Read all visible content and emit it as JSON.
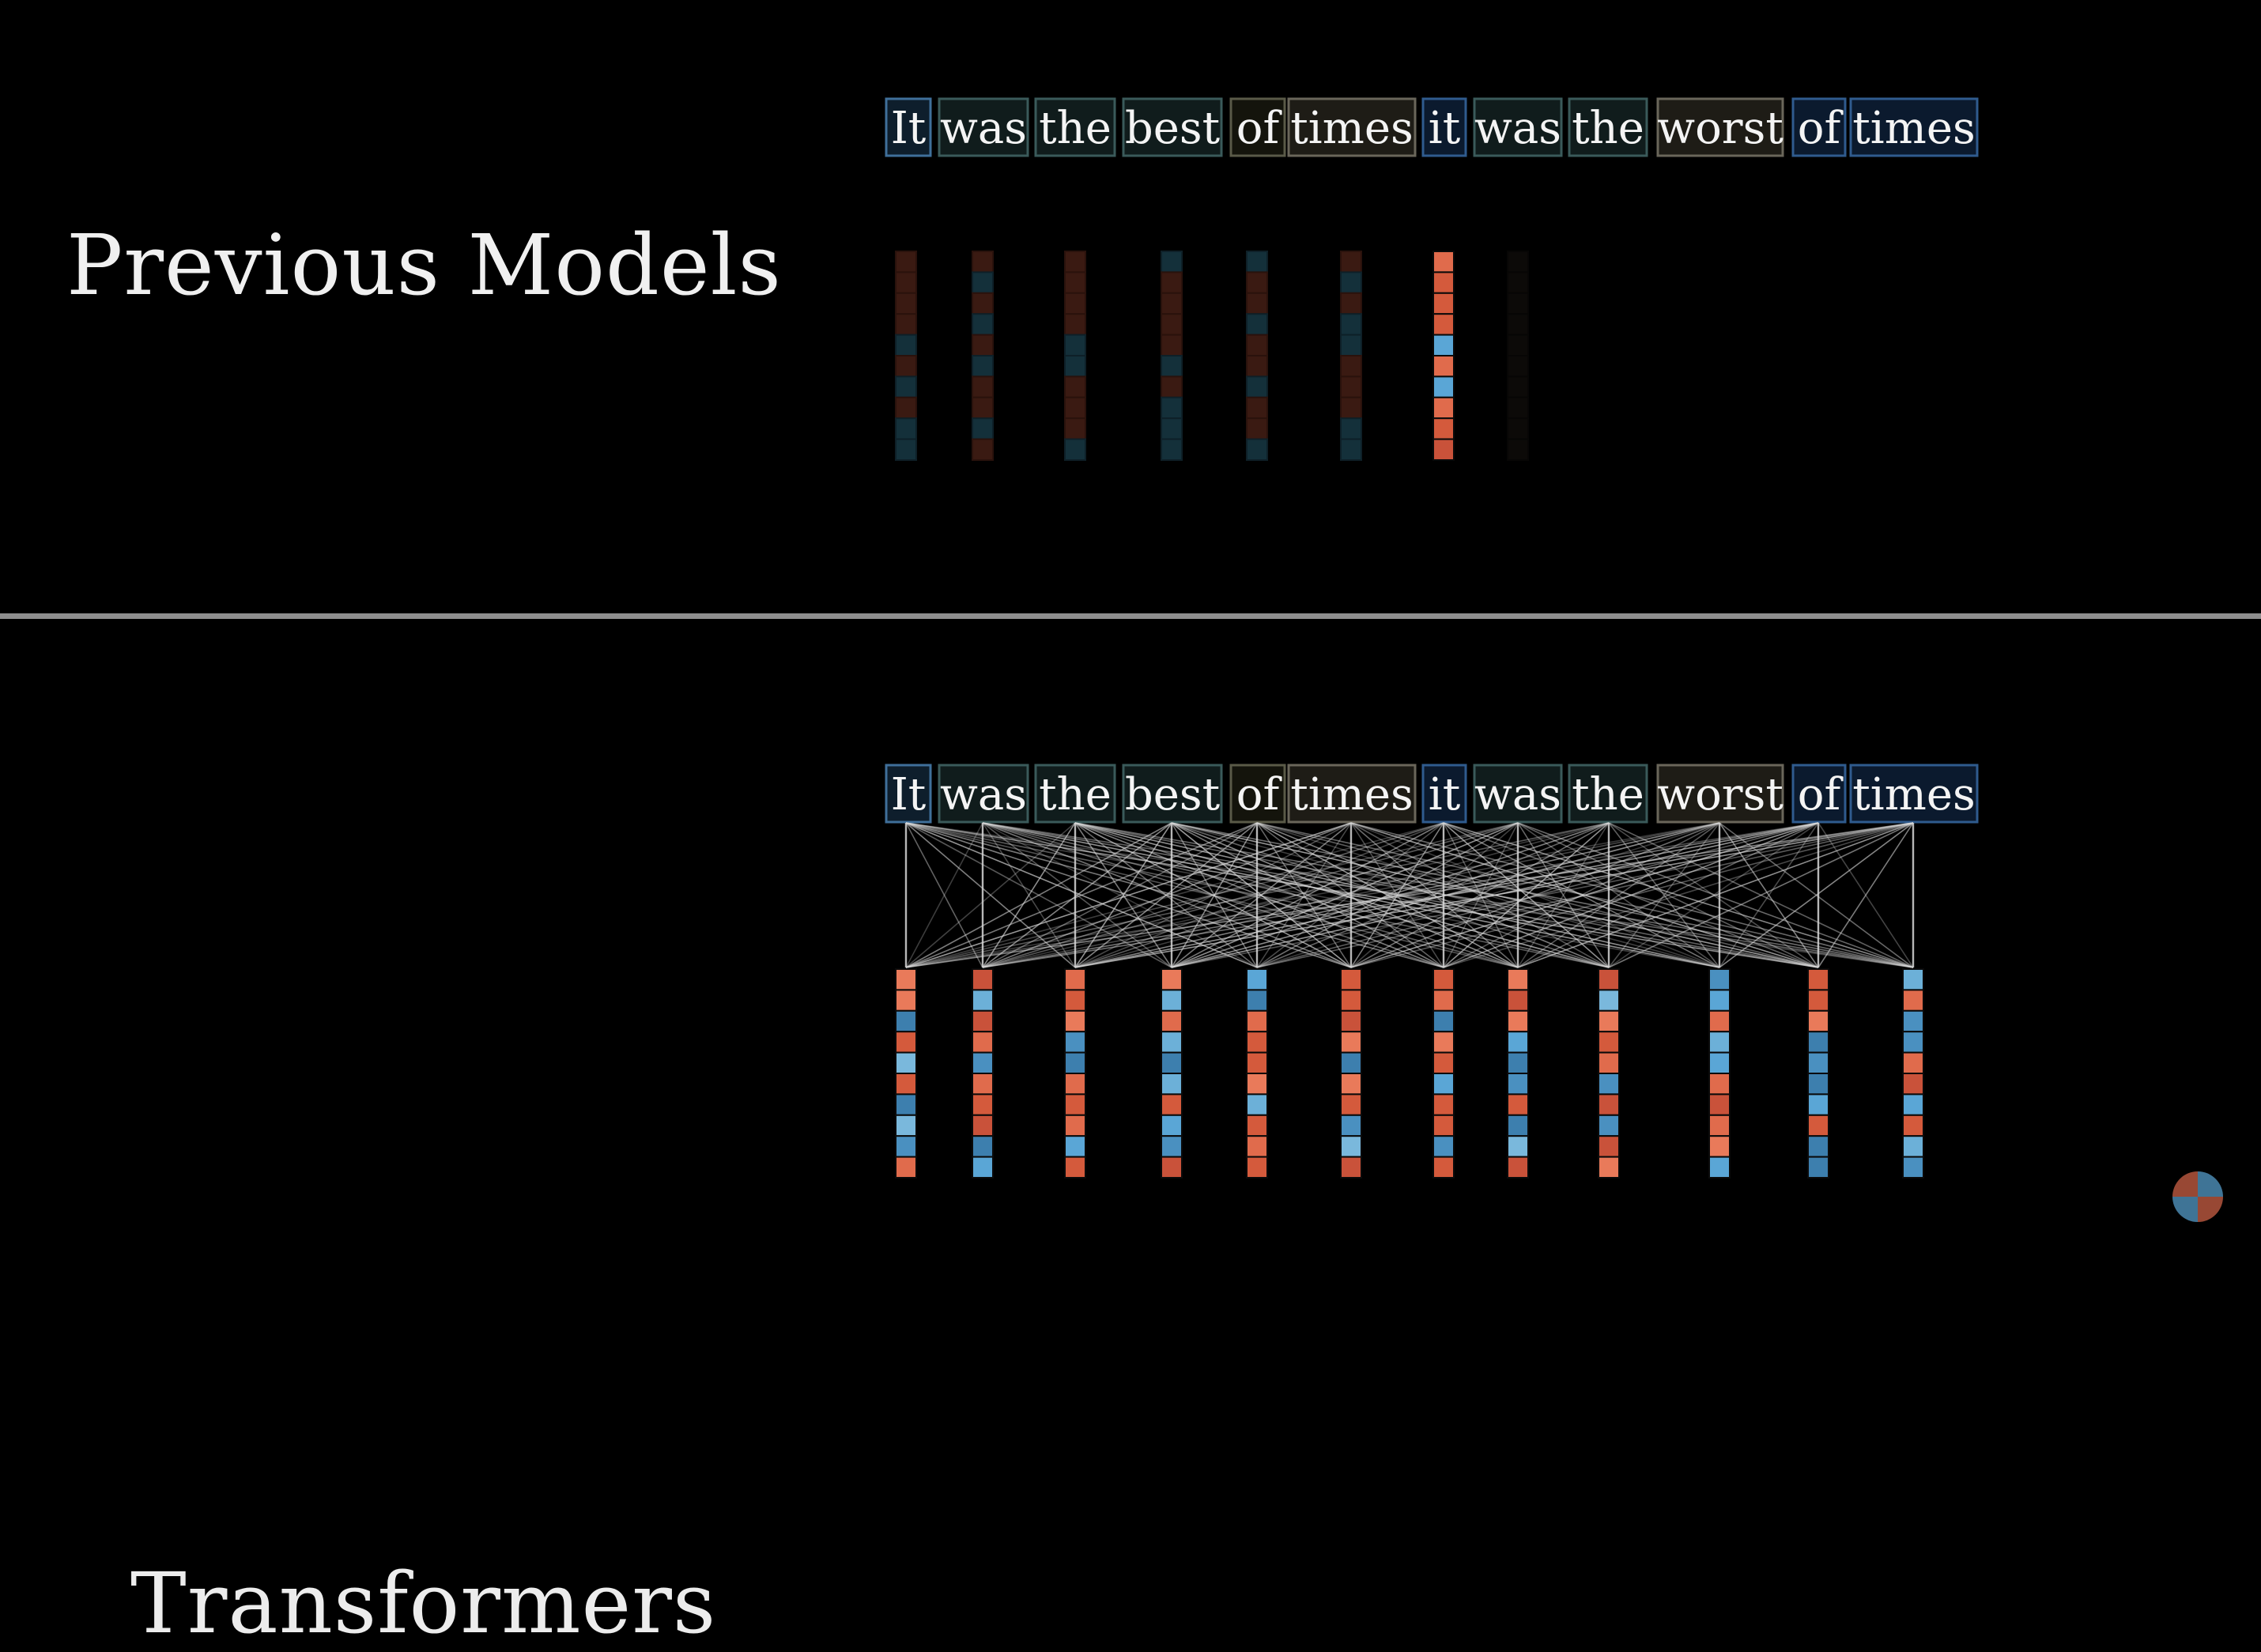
{
  "panels": {
    "top": {
      "heading": "Previous Models"
    },
    "bottom": {
      "heading": "Transformers"
    }
  },
  "sentence": [
    "It",
    "was",
    "the",
    "best",
    "of",
    "times",
    "it",
    "was",
    "the",
    "worst",
    "of",
    "times"
  ],
  "colors": {
    "background": "#000000",
    "red": "#e06b4c",
    "blue": "#5aa6d6",
    "divider": "#8e8e8e"
  },
  "previous_models": {
    "note": "sequential processing: only the 7th word's vector is fully active; earlier word vectors are faded",
    "active_column": 6,
    "faded_columns": [
      0,
      1,
      2,
      3,
      4,
      5
    ]
  },
  "transformers": {
    "note": "every word attends to every word in parallel; all vectors active"
  }
}
